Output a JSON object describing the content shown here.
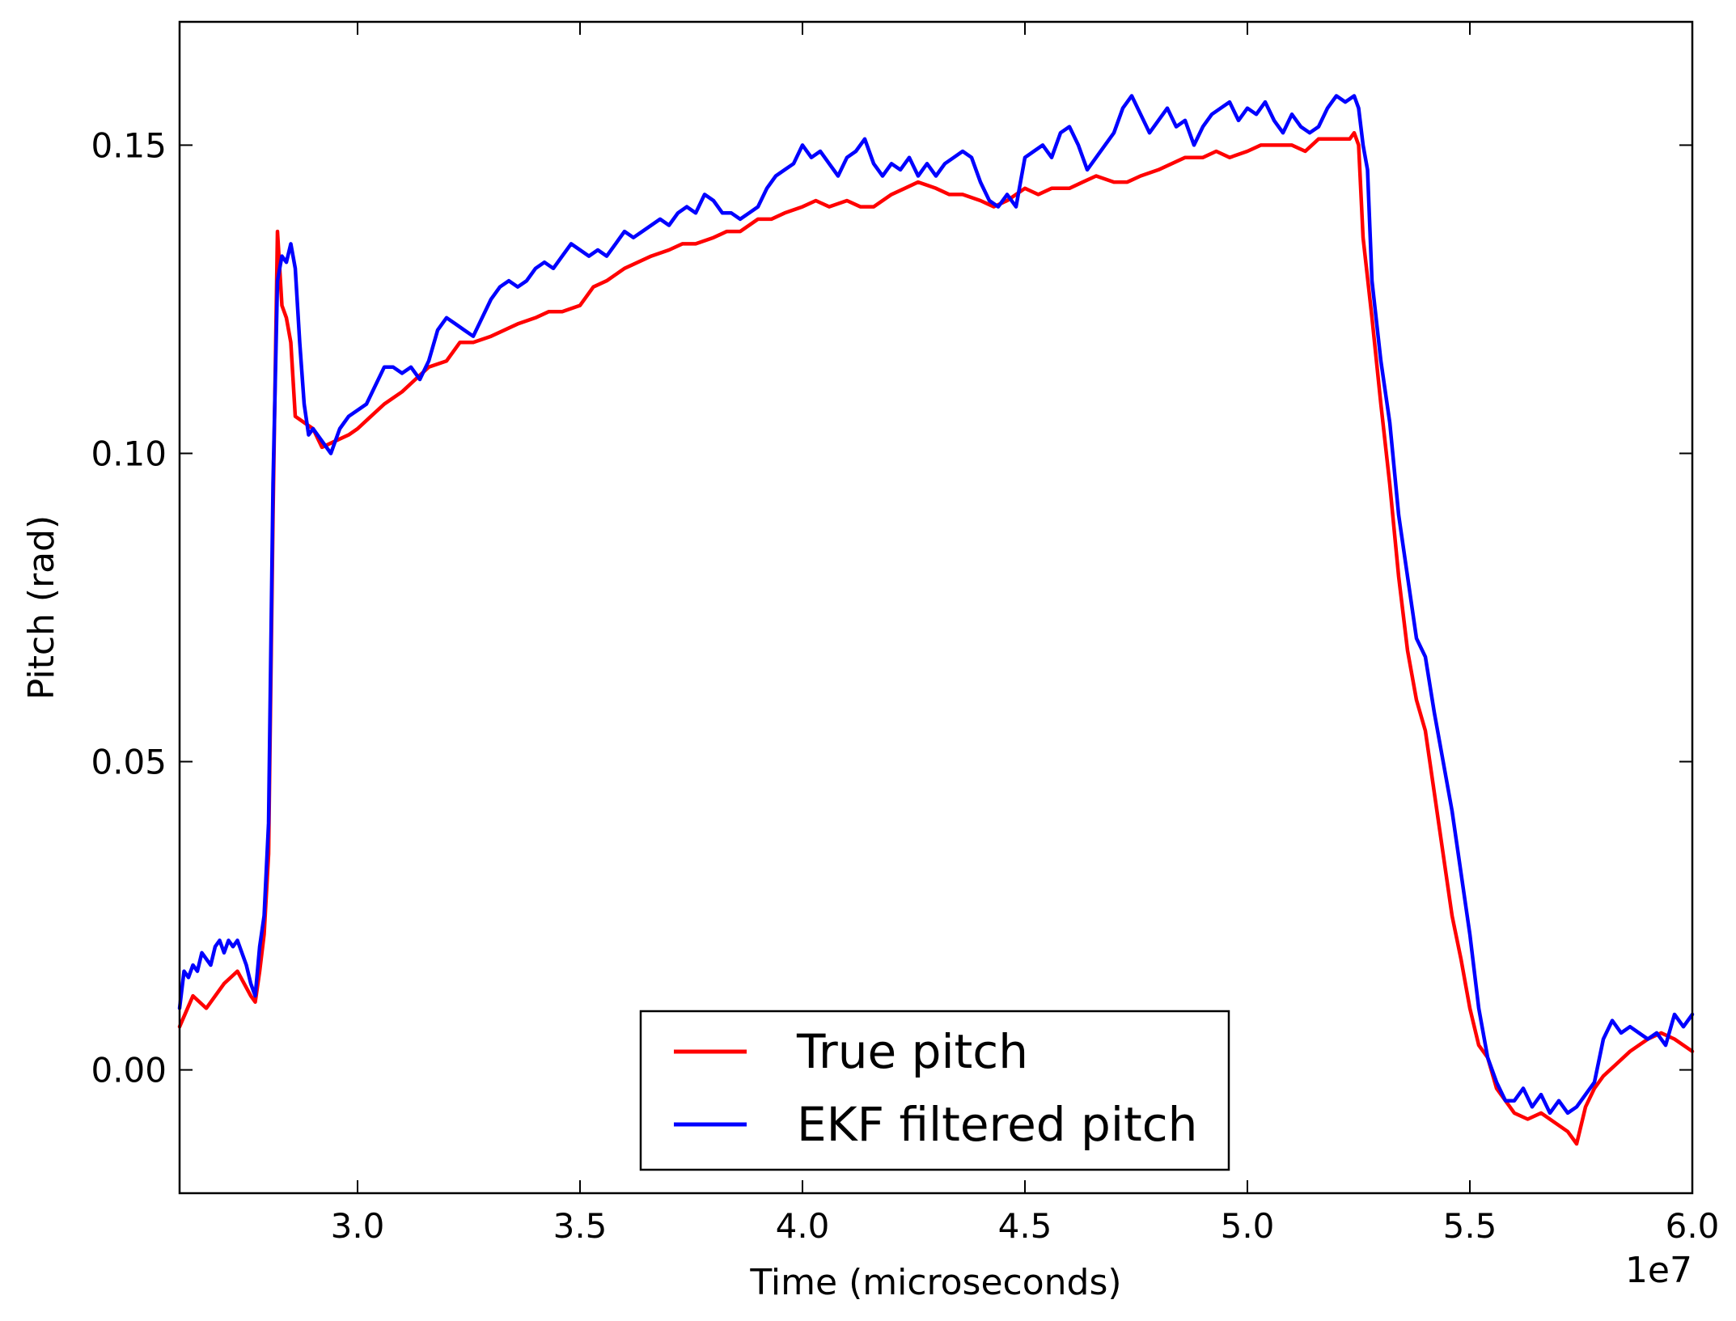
{
  "chart_data": {
    "type": "line",
    "title": "",
    "xlabel": "Time (microseconds)",
    "ylabel": "Pitch (rad)",
    "x_offset_label": "1e7",
    "xlim": [
      2.6,
      6.0
    ],
    "ylim": [
      -0.02,
      0.17
    ],
    "x_ticks": [
      3.0,
      3.5,
      4.0,
      4.5,
      5.0,
      5.5,
      6.0
    ],
    "x_tick_labels": [
      "3.0",
      "3.5",
      "4.0",
      "4.5",
      "5.0",
      "5.5",
      "6.0"
    ],
    "y_ticks": [
      0.0,
      0.05,
      0.1,
      0.15
    ],
    "y_tick_labels": [
      "0.00",
      "0.05",
      "0.10",
      "0.15"
    ],
    "grid": false,
    "legend_position": "bottom-center",
    "series": [
      {
        "name": "True pitch",
        "color": "#ff0000",
        "points": [
          [
            2.6,
            0.007
          ],
          [
            2.63,
            0.012
          ],
          [
            2.66,
            0.01
          ],
          [
            2.7,
            0.014
          ],
          [
            2.73,
            0.016
          ],
          [
            2.76,
            0.012
          ],
          [
            2.77,
            0.011
          ],
          [
            2.78,
            0.016
          ],
          [
            2.79,
            0.022
          ],
          [
            2.8,
            0.035
          ],
          [
            2.81,
            0.09
          ],
          [
            2.82,
            0.136
          ],
          [
            2.83,
            0.124
          ],
          [
            2.84,
            0.122
          ],
          [
            2.85,
            0.118
          ],
          [
            2.86,
            0.106
          ],
          [
            2.88,
            0.105
          ],
          [
            2.9,
            0.104
          ],
          [
            2.92,
            0.101
          ],
          [
            2.95,
            0.102
          ],
          [
            2.98,
            0.103
          ],
          [
            3.0,
            0.104
          ],
          [
            3.03,
            0.106
          ],
          [
            3.06,
            0.108
          ],
          [
            3.1,
            0.11
          ],
          [
            3.13,
            0.112
          ],
          [
            3.16,
            0.114
          ],
          [
            3.2,
            0.115
          ],
          [
            3.23,
            0.118
          ],
          [
            3.26,
            0.118
          ],
          [
            3.3,
            0.119
          ],
          [
            3.33,
            0.12
          ],
          [
            3.36,
            0.121
          ],
          [
            3.4,
            0.122
          ],
          [
            3.43,
            0.123
          ],
          [
            3.46,
            0.123
          ],
          [
            3.5,
            0.124
          ],
          [
            3.53,
            0.127
          ],
          [
            3.56,
            0.128
          ],
          [
            3.6,
            0.13
          ],
          [
            3.63,
            0.131
          ],
          [
            3.66,
            0.132
          ],
          [
            3.7,
            0.133
          ],
          [
            3.73,
            0.134
          ],
          [
            3.76,
            0.134
          ],
          [
            3.8,
            0.135
          ],
          [
            3.83,
            0.136
          ],
          [
            3.86,
            0.136
          ],
          [
            3.9,
            0.138
          ],
          [
            3.93,
            0.138
          ],
          [
            3.96,
            0.139
          ],
          [
            4.0,
            0.14
          ],
          [
            4.03,
            0.141
          ],
          [
            4.06,
            0.14
          ],
          [
            4.1,
            0.141
          ],
          [
            4.13,
            0.14
          ],
          [
            4.16,
            0.14
          ],
          [
            4.2,
            0.142
          ],
          [
            4.23,
            0.143
          ],
          [
            4.26,
            0.144
          ],
          [
            4.3,
            0.143
          ],
          [
            4.33,
            0.142
          ],
          [
            4.36,
            0.142
          ],
          [
            4.4,
            0.141
          ],
          [
            4.43,
            0.14
          ],
          [
            4.46,
            0.141
          ],
          [
            4.5,
            0.143
          ],
          [
            4.53,
            0.142
          ],
          [
            4.56,
            0.143
          ],
          [
            4.6,
            0.143
          ],
          [
            4.63,
            0.144
          ],
          [
            4.66,
            0.145
          ],
          [
            4.7,
            0.144
          ],
          [
            4.73,
            0.144
          ],
          [
            4.76,
            0.145
          ],
          [
            4.8,
            0.146
          ],
          [
            4.83,
            0.147
          ],
          [
            4.86,
            0.148
          ],
          [
            4.9,
            0.148
          ],
          [
            4.93,
            0.149
          ],
          [
            4.96,
            0.148
          ],
          [
            5.0,
            0.149
          ],
          [
            5.03,
            0.15
          ],
          [
            5.06,
            0.15
          ],
          [
            5.1,
            0.15
          ],
          [
            5.13,
            0.149
          ],
          [
            5.16,
            0.151
          ],
          [
            5.2,
            0.151
          ],
          [
            5.23,
            0.151
          ],
          [
            5.24,
            0.152
          ],
          [
            5.25,
            0.15
          ],
          [
            5.26,
            0.135
          ],
          [
            5.28,
            0.122
          ],
          [
            5.3,
            0.108
          ],
          [
            5.32,
            0.095
          ],
          [
            5.34,
            0.08
          ],
          [
            5.36,
            0.068
          ],
          [
            5.38,
            0.06
          ],
          [
            5.4,
            0.055
          ],
          [
            5.42,
            0.045
          ],
          [
            5.44,
            0.035
          ],
          [
            5.46,
            0.025
          ],
          [
            5.48,
            0.018
          ],
          [
            5.5,
            0.01
          ],
          [
            5.52,
            0.004
          ],
          [
            5.54,
            0.002
          ],
          [
            5.56,
            -0.003
          ],
          [
            5.6,
            -0.007
          ],
          [
            5.63,
            -0.008
          ],
          [
            5.66,
            -0.007
          ],
          [
            5.7,
            -0.009
          ],
          [
            5.72,
            -0.01
          ],
          [
            5.74,
            -0.012
          ],
          [
            5.76,
            -0.006
          ],
          [
            5.78,
            -0.003
          ],
          [
            5.8,
            -0.001
          ],
          [
            5.83,
            0.001
          ],
          [
            5.86,
            0.003
          ],
          [
            5.9,
            0.005
          ],
          [
            5.93,
            0.006
          ],
          [
            5.96,
            0.005
          ],
          [
            6.0,
            0.003
          ]
        ]
      },
      {
        "name": "EKF filtered pitch",
        "color": "#0000ff",
        "points": [
          [
            2.6,
            0.01
          ],
          [
            2.61,
            0.016
          ],
          [
            2.62,
            0.015
          ],
          [
            2.63,
            0.017
          ],
          [
            2.64,
            0.016
          ],
          [
            2.65,
            0.019
          ],
          [
            2.66,
            0.018
          ],
          [
            2.67,
            0.017
          ],
          [
            2.68,
            0.02
          ],
          [
            2.69,
            0.021
          ],
          [
            2.7,
            0.019
          ],
          [
            2.71,
            0.021
          ],
          [
            2.72,
            0.02
          ],
          [
            2.73,
            0.021
          ],
          [
            2.74,
            0.019
          ],
          [
            2.75,
            0.017
          ],
          [
            2.76,
            0.014
          ],
          [
            2.77,
            0.012
          ],
          [
            2.78,
            0.02
          ],
          [
            2.79,
            0.025
          ],
          [
            2.8,
            0.04
          ],
          [
            2.81,
            0.095
          ],
          [
            2.82,
            0.128
          ],
          [
            2.83,
            0.132
          ],
          [
            2.84,
            0.131
          ],
          [
            2.85,
            0.134
          ],
          [
            2.86,
            0.13
          ],
          [
            2.87,
            0.118
          ],
          [
            2.88,
            0.108
          ],
          [
            2.89,
            0.103
          ],
          [
            2.9,
            0.104
          ],
          [
            2.92,
            0.102
          ],
          [
            2.94,
            0.1
          ],
          [
            2.96,
            0.104
          ],
          [
            2.98,
            0.106
          ],
          [
            3.0,
            0.107
          ],
          [
            3.02,
            0.108
          ],
          [
            3.04,
            0.111
          ],
          [
            3.06,
            0.114
          ],
          [
            3.08,
            0.114
          ],
          [
            3.1,
            0.113
          ],
          [
            3.12,
            0.114
          ],
          [
            3.14,
            0.112
          ],
          [
            3.16,
            0.115
          ],
          [
            3.18,
            0.12
          ],
          [
            3.2,
            0.122
          ],
          [
            3.22,
            0.121
          ],
          [
            3.24,
            0.12
          ],
          [
            3.26,
            0.119
          ],
          [
            3.28,
            0.122
          ],
          [
            3.3,
            0.125
          ],
          [
            3.32,
            0.127
          ],
          [
            3.34,
            0.128
          ],
          [
            3.36,
            0.127
          ],
          [
            3.38,
            0.128
          ],
          [
            3.4,
            0.13
          ],
          [
            3.42,
            0.131
          ],
          [
            3.44,
            0.13
          ],
          [
            3.46,
            0.132
          ],
          [
            3.48,
            0.134
          ],
          [
            3.5,
            0.133
          ],
          [
            3.52,
            0.132
          ],
          [
            3.54,
            0.133
          ],
          [
            3.56,
            0.132
          ],
          [
            3.58,
            0.134
          ],
          [
            3.6,
            0.136
          ],
          [
            3.62,
            0.135
          ],
          [
            3.64,
            0.136
          ],
          [
            3.66,
            0.137
          ],
          [
            3.68,
            0.138
          ],
          [
            3.7,
            0.137
          ],
          [
            3.72,
            0.139
          ],
          [
            3.74,
            0.14
          ],
          [
            3.76,
            0.139
          ],
          [
            3.78,
            0.142
          ],
          [
            3.8,
            0.141
          ],
          [
            3.82,
            0.139
          ],
          [
            3.84,
            0.139
          ],
          [
            3.86,
            0.138
          ],
          [
            3.88,
            0.139
          ],
          [
            3.9,
            0.14
          ],
          [
            3.92,
            0.143
          ],
          [
            3.94,
            0.145
          ],
          [
            3.96,
            0.146
          ],
          [
            3.98,
            0.147
          ],
          [
            4.0,
            0.15
          ],
          [
            4.02,
            0.148
          ],
          [
            4.04,
            0.149
          ],
          [
            4.06,
            0.147
          ],
          [
            4.08,
            0.145
          ],
          [
            4.1,
            0.148
          ],
          [
            4.12,
            0.149
          ],
          [
            4.14,
            0.151
          ],
          [
            4.16,
            0.147
          ],
          [
            4.18,
            0.145
          ],
          [
            4.2,
            0.147
          ],
          [
            4.22,
            0.146
          ],
          [
            4.24,
            0.148
          ],
          [
            4.26,
            0.145
          ],
          [
            4.28,
            0.147
          ],
          [
            4.3,
            0.145
          ],
          [
            4.32,
            0.147
          ],
          [
            4.34,
            0.148
          ],
          [
            4.36,
            0.149
          ],
          [
            4.38,
            0.148
          ],
          [
            4.4,
            0.144
          ],
          [
            4.42,
            0.141
          ],
          [
            4.44,
            0.14
          ],
          [
            4.46,
            0.142
          ],
          [
            4.48,
            0.14
          ],
          [
            4.5,
            0.148
          ],
          [
            4.52,
            0.149
          ],
          [
            4.54,
            0.15
          ],
          [
            4.56,
            0.148
          ],
          [
            4.58,
            0.152
          ],
          [
            4.6,
            0.153
          ],
          [
            4.62,
            0.15
          ],
          [
            4.64,
            0.146
          ],
          [
            4.66,
            0.148
          ],
          [
            4.68,
            0.15
          ],
          [
            4.7,
            0.152
          ],
          [
            4.72,
            0.156
          ],
          [
            4.74,
            0.158
          ],
          [
            4.76,
            0.155
          ],
          [
            4.78,
            0.152
          ],
          [
            4.8,
            0.154
          ],
          [
            4.82,
            0.156
          ],
          [
            4.84,
            0.153
          ],
          [
            4.86,
            0.154
          ],
          [
            4.88,
            0.15
          ],
          [
            4.9,
            0.153
          ],
          [
            4.92,
            0.155
          ],
          [
            4.94,
            0.156
          ],
          [
            4.96,
            0.157
          ],
          [
            4.98,
            0.154
          ],
          [
            5.0,
            0.156
          ],
          [
            5.02,
            0.155
          ],
          [
            5.04,
            0.157
          ],
          [
            5.06,
            0.154
          ],
          [
            5.08,
            0.152
          ],
          [
            5.1,
            0.155
          ],
          [
            5.12,
            0.153
          ],
          [
            5.14,
            0.152
          ],
          [
            5.16,
            0.153
          ],
          [
            5.18,
            0.156
          ],
          [
            5.2,
            0.158
          ],
          [
            5.22,
            0.157
          ],
          [
            5.24,
            0.158
          ],
          [
            5.25,
            0.156
          ],
          [
            5.26,
            0.15
          ],
          [
            5.27,
            0.146
          ],
          [
            5.28,
            0.128
          ],
          [
            5.3,
            0.115
          ],
          [
            5.32,
            0.105
          ],
          [
            5.34,
            0.09
          ],
          [
            5.36,
            0.08
          ],
          [
            5.38,
            0.07
          ],
          [
            5.4,
            0.067
          ],
          [
            5.42,
            0.058
          ],
          [
            5.44,
            0.05
          ],
          [
            5.46,
            0.042
          ],
          [
            5.48,
            0.032
          ],
          [
            5.5,
            0.022
          ],
          [
            5.52,
            0.01
          ],
          [
            5.54,
            0.002
          ],
          [
            5.56,
            -0.002
          ],
          [
            5.58,
            -0.005
          ],
          [
            5.6,
            -0.005
          ],
          [
            5.62,
            -0.003
          ],
          [
            5.64,
            -0.006
          ],
          [
            5.66,
            -0.004
          ],
          [
            5.68,
            -0.007
          ],
          [
            5.7,
            -0.005
          ],
          [
            5.72,
            -0.007
          ],
          [
            5.74,
            -0.006
          ],
          [
            5.76,
            -0.004
          ],
          [
            5.78,
            -0.002
          ],
          [
            5.8,
            0.005
          ],
          [
            5.82,
            0.008
          ],
          [
            5.84,
            0.006
          ],
          [
            5.86,
            0.007
          ],
          [
            5.88,
            0.006
          ],
          [
            5.9,
            0.005
          ],
          [
            5.92,
            0.006
          ],
          [
            5.94,
            0.004
          ],
          [
            5.96,
            0.009
          ],
          [
            5.98,
            0.007
          ],
          [
            6.0,
            0.009
          ]
        ]
      }
    ]
  }
}
